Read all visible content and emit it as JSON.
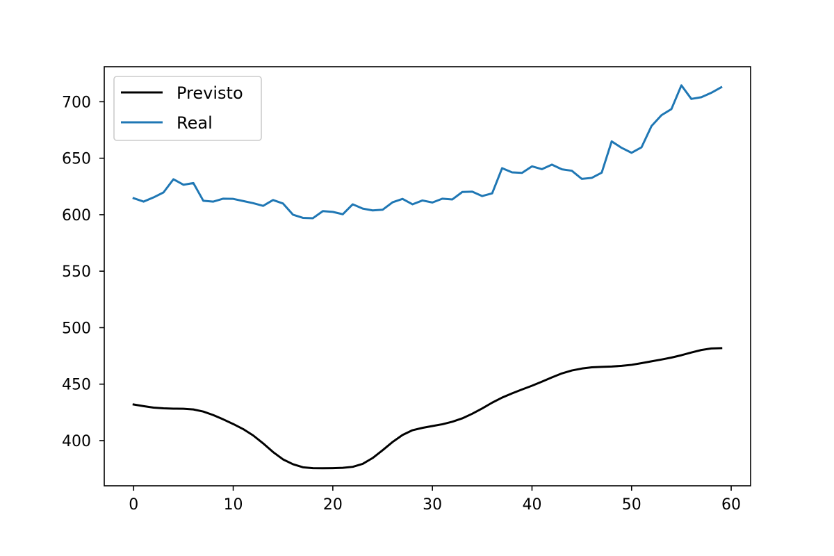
{
  "chart_data": {
    "type": "line",
    "title": "",
    "xlabel": "",
    "ylabel": "",
    "xlim": [
      -2.95,
      61.95
    ],
    "ylim": [
      360,
      731
    ],
    "xticks": [
      0,
      10,
      20,
      30,
      40,
      50,
      60
    ],
    "yticks": [
      400,
      450,
      500,
      550,
      600,
      650,
      700
    ],
    "grid": false,
    "legend_position": "top-left",
    "x": [
      0,
      1,
      2,
      3,
      4,
      5,
      6,
      7,
      8,
      9,
      10,
      11,
      12,
      13,
      14,
      15,
      16,
      17,
      18,
      19,
      20,
      21,
      22,
      23,
      24,
      25,
      26,
      27,
      28,
      29,
      30,
      31,
      32,
      33,
      34,
      35,
      36,
      37,
      38,
      39,
      40,
      41,
      42,
      43,
      44,
      45,
      46,
      47,
      48,
      49,
      50,
      51,
      52,
      53,
      54,
      55,
      56,
      57,
      58,
      59
    ],
    "series": [
      {
        "name": "Previsto",
        "color": "#000000",
        "values": [
          432,
          430.5,
          429.2,
          428.6,
          428.3,
          428.2,
          427.6,
          425.7,
          422.6,
          418.8,
          414.7,
          410.2,
          404.6,
          397.6,
          389.9,
          383.4,
          379.1,
          376.4,
          375.6,
          375.5,
          375.6,
          375.9,
          376.8,
          379.4,
          384.6,
          391.5,
          398.8,
          405,
          409.2,
          411.3,
          412.9,
          414.5,
          416.7,
          419.7,
          423.8,
          428.5,
          433.6,
          438.1,
          441.8,
          445.3,
          448.6,
          452.2,
          456,
          459.5,
          462.1,
          463.8,
          464.9,
          465.3,
          465.6,
          466.2,
          467.1,
          468.6,
          470.2,
          471.8,
          473.5,
          475.6,
          478,
          480.2,
          481.6,
          481.9
        ]
      },
      {
        "name": "Real",
        "color": "#1f77b4",
        "values": [
          614.6,
          611.6,
          615.3,
          619.7,
          631.4,
          626.5,
          628,
          612.3,
          611.6,
          614.2,
          614,
          612.1,
          610.2,
          607.8,
          613,
          609.9,
          600,
          597.2,
          596.9,
          603.2,
          602.5,
          600.4,
          609.2,
          605.4,
          603.8,
          604.4,
          611,
          614,
          609.2,
          612.6,
          610.8,
          614.2,
          613.5,
          620.1,
          620.4,
          616.5,
          618.9,
          641.2,
          637.5,
          637,
          642.8,
          640.3,
          644.3,
          640.2,
          638.9,
          631.7,
          632.6,
          637.2,
          664.9,
          659.2,
          654.8,
          659.7,
          678.5,
          688.1,
          693.5,
          714.5,
          702.5,
          704,
          707.9,
          712.8
        ]
      }
    ]
  }
}
